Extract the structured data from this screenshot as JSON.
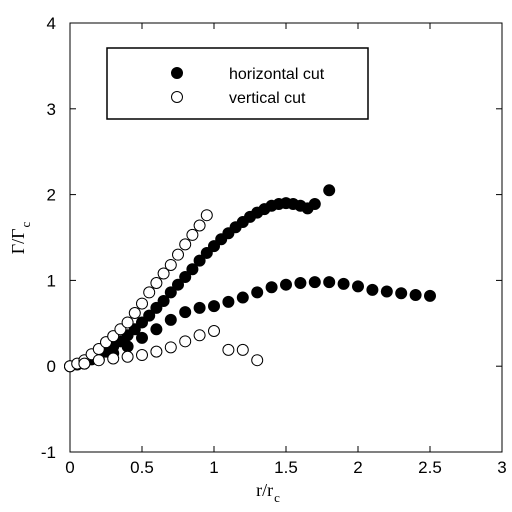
{
  "chart_data": {
    "type": "scatter",
    "title": "",
    "xlabel": {
      "main": "r/r",
      "sub": "c"
    },
    "ylabel": {
      "main": "Γ/Γ",
      "sub": "c"
    },
    "xlim": [
      0,
      3
    ],
    "ylim": [
      -1,
      4
    ],
    "xticks": [
      {
        "value": 0,
        "label": "0"
      },
      {
        "value": 0.5,
        "label": "0.5"
      },
      {
        "value": 1,
        "label": "1"
      },
      {
        "value": 1.5,
        "label": "1.5"
      },
      {
        "value": 2,
        "label": "2"
      },
      {
        "value": 2.5,
        "label": "2.5"
      },
      {
        "value": 3,
        "label": "3"
      }
    ],
    "yticks": [
      {
        "value": -1,
        "label": "-1"
      },
      {
        "value": 0,
        "label": "0"
      },
      {
        "value": 1,
        "label": "1"
      },
      {
        "value": 2,
        "label": "2"
      },
      {
        "value": 3,
        "label": "3"
      },
      {
        "value": 4,
        "label": "4"
      }
    ],
    "grid": false,
    "legend_position": "top-left",
    "series": [
      {
        "name": "horizontal cut",
        "marker": "filled-circle",
        "color": "#000000",
        "points": [
          [
            0.0,
            0.0
          ],
          [
            0.05,
            0.02
          ],
          [
            0.1,
            0.05
          ],
          [
            0.15,
            0.08
          ],
          [
            0.2,
            0.12
          ],
          [
            0.25,
            0.17
          ],
          [
            0.3,
            0.23
          ],
          [
            0.35,
            0.29
          ],
          [
            0.4,
            0.36
          ],
          [
            0.45,
            0.43
          ],
          [
            0.5,
            0.51
          ],
          [
            0.55,
            0.59
          ],
          [
            0.6,
            0.68
          ],
          [
            0.65,
            0.76
          ],
          [
            0.7,
            0.86
          ],
          [
            0.75,
            0.95
          ],
          [
            0.8,
            1.04
          ],
          [
            0.85,
            1.13
          ],
          [
            0.9,
            1.23
          ],
          [
            0.95,
            1.32
          ],
          [
            1.0,
            1.4
          ],
          [
            1.05,
            1.48
          ],
          [
            1.1,
            1.55
          ],
          [
            1.15,
            1.62
          ],
          [
            1.2,
            1.68
          ],
          [
            1.25,
            1.74
          ],
          [
            1.3,
            1.79
          ],
          [
            1.35,
            1.83
          ],
          [
            1.4,
            1.87
          ],
          [
            1.45,
            1.89
          ],
          [
            1.5,
            1.9
          ],
          [
            1.55,
            1.89
          ],
          [
            1.6,
            1.87
          ],
          [
            1.65,
            1.84
          ],
          [
            1.7,
            1.89
          ],
          [
            1.8,
            2.05
          ],
          [
            0.0,
            0.0
          ],
          [
            0.1,
            0.03
          ],
          [
            0.2,
            0.08
          ],
          [
            0.3,
            0.15
          ],
          [
            0.4,
            0.23
          ],
          [
            0.5,
            0.33
          ],
          [
            0.6,
            0.43
          ],
          [
            0.7,
            0.54
          ],
          [
            0.8,
            0.63
          ],
          [
            0.9,
            0.68
          ],
          [
            1.0,
            0.7
          ],
          [
            1.1,
            0.75
          ],
          [
            1.2,
            0.8
          ],
          [
            1.3,
            0.86
          ],
          [
            1.4,
            0.92
          ],
          [
            1.5,
            0.95
          ],
          [
            1.6,
            0.97
          ],
          [
            1.7,
            0.98
          ],
          [
            1.8,
            0.98
          ],
          [
            1.9,
            0.96
          ],
          [
            2.0,
            0.93
          ],
          [
            2.1,
            0.89
          ],
          [
            2.2,
            0.87
          ],
          [
            2.3,
            0.85
          ],
          [
            2.4,
            0.83
          ],
          [
            2.5,
            0.82
          ]
        ]
      },
      {
        "name": "vertical cut",
        "marker": "open-circle",
        "color": "#000000",
        "points": [
          [
            0.0,
            0.0
          ],
          [
            0.05,
            0.03
          ],
          [
            0.1,
            0.07
          ],
          [
            0.15,
            0.14
          ],
          [
            0.2,
            0.2
          ],
          [
            0.25,
            0.28
          ],
          [
            0.3,
            0.35
          ],
          [
            0.35,
            0.43
          ],
          [
            0.4,
            0.51
          ],
          [
            0.45,
            0.62
          ],
          [
            0.5,
            0.73
          ],
          [
            0.55,
            0.86
          ],
          [
            0.6,
            0.97
          ],
          [
            0.65,
            1.08
          ],
          [
            0.7,
            1.18
          ],
          [
            0.75,
            1.3
          ],
          [
            0.8,
            1.42
          ],
          [
            0.85,
            1.53
          ],
          [
            0.9,
            1.64
          ],
          [
            0.95,
            1.76
          ],
          [
            0.1,
            0.03
          ],
          [
            0.2,
            0.07
          ],
          [
            0.3,
            0.09
          ],
          [
            0.4,
            0.11
          ],
          [
            0.5,
            0.13
          ],
          [
            0.6,
            0.17
          ],
          [
            0.7,
            0.22
          ],
          [
            0.8,
            0.29
          ],
          [
            0.9,
            0.36
          ],
          [
            1.0,
            0.41
          ],
          [
            1.1,
            0.19
          ],
          [
            1.2,
            0.19
          ],
          [
            1.3,
            0.07
          ]
        ]
      }
    ]
  }
}
